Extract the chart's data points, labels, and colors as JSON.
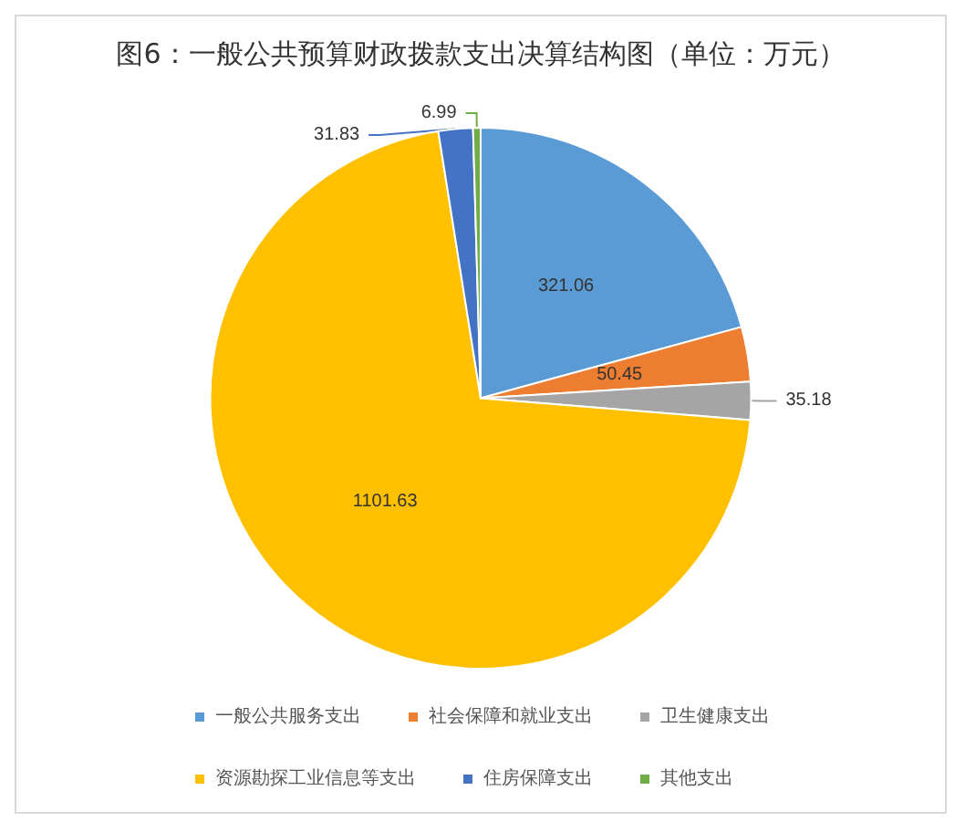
{
  "chart_data": {
    "type": "pie",
    "title": "图6：一般公共预算财政拨款支出决算结构图（单位：万元）",
    "categories": [
      "一般公共服务支出",
      "社会保障和就业支出",
      "卫生健康支出",
      "资源勘探工业信息等支出",
      "住房保障支出",
      "其他支出"
    ],
    "values": [
      321.06,
      50.45,
      35.18,
      1101.63,
      31.83,
      6.99
    ],
    "colors": [
      "#5b9bd5",
      "#ed7d31",
      "#a5a5a5",
      "#ffc000",
      "#4472c4",
      "#70ad47"
    ],
    "data_labels": true,
    "legend": "bottom"
  }
}
